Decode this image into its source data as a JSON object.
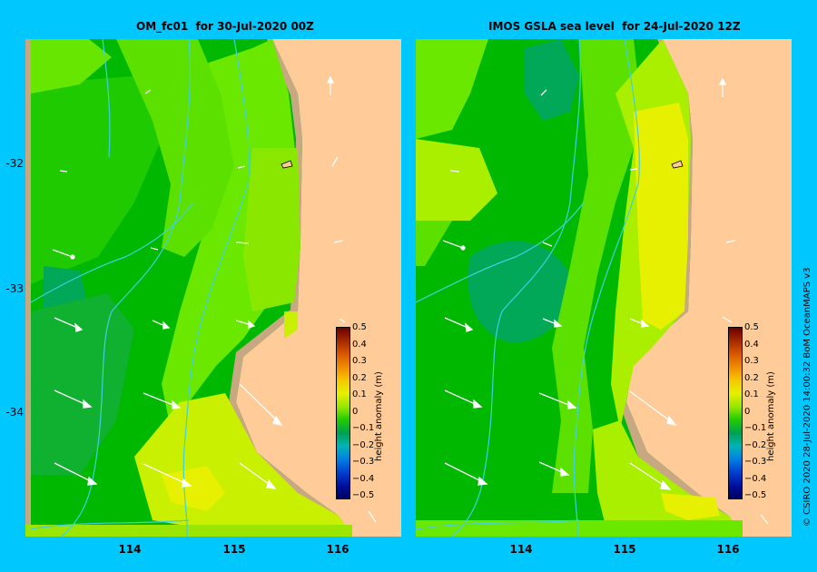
{
  "panels": [
    {
      "title": "OM_fc01  for 30-Jul-2020 00Z"
    },
    {
      "title": "IMOS GSLA sea level  for 24-Jul-2020 12Z"
    }
  ],
  "axes": {
    "y_labels": [
      "-32",
      "-33",
      "-34"
    ],
    "x_labels": [
      "114",
      "115",
      "116"
    ]
  },
  "colorbar": {
    "title": "height anomaly (m)",
    "ticks": [
      "0.5",
      "0.4",
      "0.3",
      "0.2",
      "0.1",
      "0",
      "−0.1",
      "−0.2",
      "−0.3",
      "−0.4",
      "−0.5"
    ],
    "colors": [
      "#6b0000",
      "#a52a00",
      "#d85800",
      "#f08c00",
      "#f5c800",
      "#e6f000",
      "#9ae600",
      "#22cc00",
      "#00a050",
      "#00b4b4",
      "#0080e6",
      "#0040d0",
      "#0010a0",
      "#000060"
    ]
  },
  "palette": {
    "land": "#ffcc99",
    "shelf": "#c8a882",
    "background": "#00c8ff",
    "contour": "#40d0e0"
  },
  "copyright": "© CSIRO 2020   28-Jul-2020 14:00:32 BoM OceanMAPS v3"
}
